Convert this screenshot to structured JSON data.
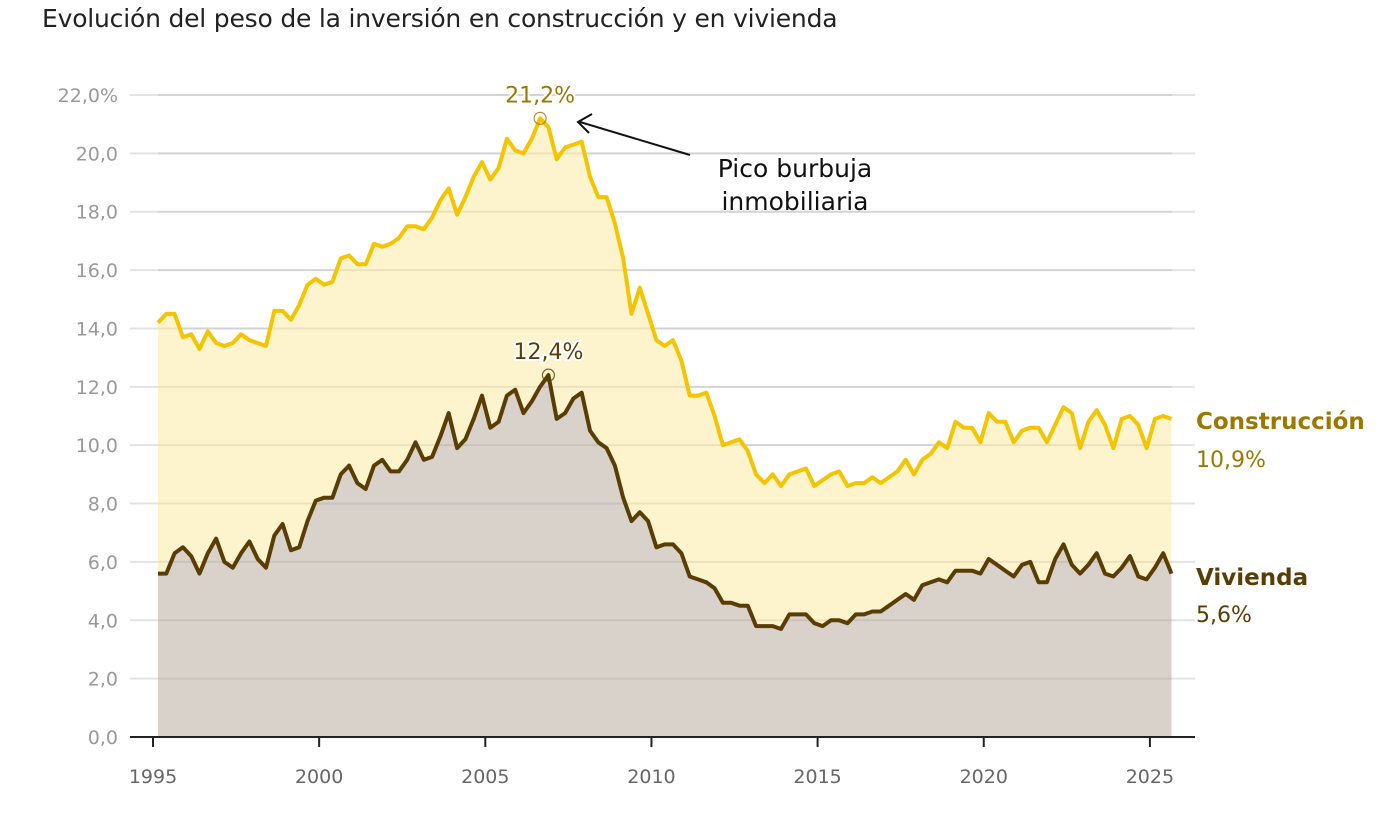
{
  "title": "Evolución del peso de la inversión en construcción y en vivienda",
  "chart_data": {
    "type": "area",
    "title": "Evolución del peso de la inversión en construcción y en vivienda",
    "xlabel": "",
    "ylabel": "",
    "ylim": [
      0,
      22
    ],
    "yticks": [
      0,
      2,
      4,
      6,
      8,
      10,
      12,
      14,
      16,
      18,
      20,
      22
    ],
    "ytick_labels": [
      "0,0",
      "2,0",
      "4,0",
      "6,0",
      "8,0",
      "10,0",
      "12,0",
      "14,0",
      "16,0",
      "18,0",
      "20,0",
      "22,0%"
    ],
    "xticks": [
      1995,
      2000,
      2005,
      2010,
      2015,
      2020,
      2025
    ],
    "xtick_labels": [
      "1995",
      "2000",
      "2005",
      "2010",
      "2015",
      "2020",
      "2025"
    ],
    "grid": true,
    "x_frequency": "quarterly",
    "x_first": "1995-Q1",
    "series": [
      {
        "name": "Construcción",
        "end_label": "10,9%",
        "line_color": "#f5c400",
        "fill_color": "#fdf3cc",
        "label_color": "#9b7800",
        "values": [
          14.2,
          14.5,
          14.5,
          13.7,
          13.8,
          13.3,
          13.9,
          13.5,
          13.4,
          13.5,
          13.8,
          13.6,
          13.5,
          13.4,
          14.6,
          14.6,
          14.3,
          14.8,
          15.5,
          15.7,
          15.5,
          15.6,
          16.4,
          16.5,
          16.2,
          16.2,
          16.9,
          16.8,
          16.9,
          17.1,
          17.5,
          17.5,
          17.4,
          17.8,
          18.4,
          18.8,
          17.9,
          18.5,
          19.2,
          19.7,
          19.1,
          19.5,
          20.5,
          20.1,
          20.0,
          20.5,
          21.2,
          20.9,
          19.8,
          20.2,
          20.3,
          20.4,
          19.2,
          18.5,
          18.5,
          17.6,
          16.4,
          14.5,
          15.4,
          14.5,
          13.6,
          13.4,
          13.6,
          12.9,
          11.7,
          11.7,
          11.8,
          11.0,
          10.0,
          10.1,
          10.2,
          9.8,
          9.0,
          8.7,
          9.0,
          8.6,
          9.0,
          9.1,
          9.2,
          8.6,
          8.8,
          9.0,
          9.1,
          8.6,
          8.7,
          8.7,
          8.9,
          8.7,
          8.9,
          9.1,
          9.5,
          9.0,
          9.5,
          9.7,
          10.1,
          9.9,
          10.8,
          10.6,
          10.6,
          10.1,
          11.1,
          10.8,
          10.8,
          10.1,
          10.5,
          10.6,
          10.6,
          10.1,
          10.7,
          11.3,
          11.1,
          9.9,
          10.8,
          11.2,
          10.7,
          9.9,
          10.9,
          11.0,
          10.7,
          9.9,
          10.9,
          11.0,
          10.9
        ]
      },
      {
        "name": "Vivienda",
        "end_label": "5,6%",
        "line_color": "#5a3d05",
        "fill_color": "#d9d2cb",
        "label_color": "#5a3d05",
        "values": [
          5.6,
          5.6,
          6.3,
          6.5,
          6.2,
          5.6,
          6.3,
          6.8,
          6.0,
          5.8,
          6.3,
          6.7,
          6.1,
          5.8,
          6.9,
          7.3,
          6.4,
          6.5,
          7.4,
          8.1,
          8.2,
          8.2,
          9.0,
          9.3,
          8.7,
          8.5,
          9.3,
          9.5,
          9.1,
          9.1,
          9.5,
          10.1,
          9.5,
          9.6,
          10.3,
          11.1,
          9.9,
          10.2,
          10.9,
          11.7,
          10.6,
          10.8,
          11.7,
          11.9,
          11.1,
          11.5,
          12.0,
          12.4,
          10.9,
          11.1,
          11.6,
          11.8,
          10.5,
          10.1,
          9.9,
          9.3,
          8.2,
          7.4,
          7.7,
          7.4,
          6.5,
          6.6,
          6.6,
          6.3,
          5.5,
          5.4,
          5.3,
          5.1,
          4.6,
          4.6,
          4.5,
          4.5,
          3.8,
          3.8,
          3.8,
          3.7,
          4.2,
          4.2,
          4.2,
          3.9,
          3.8,
          4.0,
          4.0,
          3.9,
          4.2,
          4.2,
          4.3,
          4.3,
          4.5,
          4.7,
          4.9,
          4.7,
          5.2,
          5.3,
          5.4,
          5.3,
          5.7,
          5.7,
          5.7,
          5.6,
          6.1,
          5.9,
          5.7,
          5.5,
          5.9,
          6.0,
          5.3,
          5.3,
          6.1,
          6.6,
          5.9,
          5.6,
          5.9,
          6.3,
          5.6,
          5.5,
          5.8,
          6.2,
          5.5,
          5.4,
          5.8,
          6.3,
          5.6
        ]
      }
    ],
    "annotations": [
      {
        "series": "Construcción",
        "at": "2006-Q3",
        "value": 21.2,
        "text": "21,2%",
        "color": "#9b7800"
      },
      {
        "series": "Vivienda",
        "at": "2006-Q4",
        "value": 12.4,
        "text": "12,4%",
        "color": "#5a3d05"
      },
      {
        "text_lines": [
          "Pico burbuja",
          "inmobiliaria"
        ],
        "points_to": "2006-Q3"
      }
    ]
  }
}
